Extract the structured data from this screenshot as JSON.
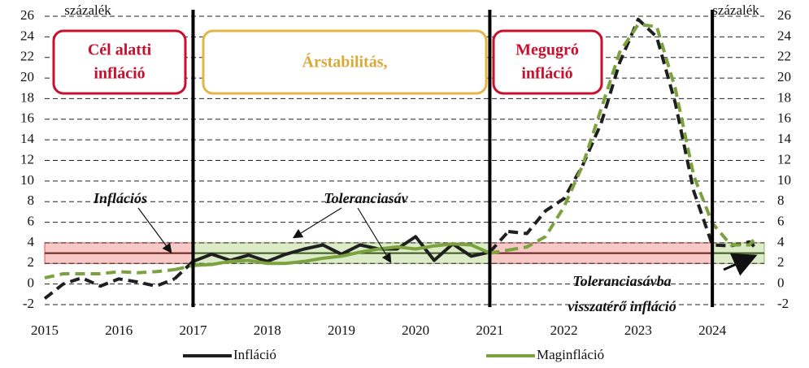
{
  "chart_data": {
    "type": "line",
    "y_label": "százalék",
    "y2_label": "százalék",
    "x": [
      2015.0,
      2015.25,
      2015.5,
      2015.75,
      2016.0,
      2016.25,
      2016.5,
      2016.75,
      2017.0,
      2017.25,
      2017.5,
      2017.75,
      2018.0,
      2018.25,
      2018.5,
      2018.75,
      2019.0,
      2019.25,
      2019.5,
      2019.75,
      2020.0,
      2020.25,
      2020.5,
      2020.75,
      2021.0,
      2021.25,
      2021.5,
      2021.75,
      2022.0,
      2022.25,
      2022.5,
      2022.75,
      2023.0,
      2023.25,
      2023.5,
      2023.75,
      2024.0,
      2024.25,
      2024.5,
      2024.6
    ],
    "series": [
      {
        "name": "Infláció",
        "color": "#1f1f1f",
        "values": [
          -1.4,
          0.0,
          0.6,
          -0.2,
          0.5,
          0.2,
          -0.2,
          0.5,
          2.2,
          2.9,
          2.3,
          2.8,
          2.2,
          2.9,
          3.4,
          3.8,
          2.9,
          3.8,
          3.4,
          3.4,
          4.6,
          2.3,
          3.9,
          2.7,
          3.1,
          5.1,
          4.9,
          7.1,
          8.3,
          11.5,
          15.6,
          21.5,
          25.7,
          24.0,
          17.6,
          9.0,
          3.8,
          3.7,
          4.1,
          3.4
        ]
      },
      {
        "name": "Maginfláció",
        "color": "#7ba23f",
        "values": [
          0.6,
          1.0,
          1.0,
          1.0,
          1.2,
          1.1,
          1.2,
          1.4,
          1.8,
          1.9,
          2.2,
          2.3,
          2.0,
          2.0,
          2.2,
          2.5,
          2.7,
          3.1,
          3.4,
          3.6,
          3.4,
          3.7,
          3.9,
          3.8,
          3.0,
          3.3,
          3.6,
          4.6,
          7.5,
          11.5,
          17.0,
          22.5,
          25.2,
          25.0,
          19.0,
          10.5,
          5.9,
          3.8,
          3.8,
          4.7
        ]
      }
    ],
    "xlim": [
      2015,
      2024.7
    ],
    "xticks": [
      2015,
      2016,
      2017,
      2018,
      2019,
      2020,
      2021,
      2022,
      2023,
      2024
    ],
    "ylim": [
      -2,
      26
    ],
    "yticks": [
      -2,
      0,
      2,
      4,
      6,
      8,
      10,
      12,
      14,
      16,
      18,
      20,
      22,
      24,
      26
    ],
    "y2lim": [
      -2,
      26
    ],
    "y2ticks": [
      -2,
      0,
      2,
      4,
      6,
      8,
      10,
      12,
      14,
      16,
      18,
      20,
      22,
      24,
      26
    ],
    "grid": true,
    "solid_range": [
      2017,
      2021
    ],
    "period_lines": [
      2017,
      2021,
      2024
    ],
    "tolerance_band": [
      2,
      4
    ],
    "target": 3,
    "band_segments": [
      {
        "from": 2015,
        "to": 2017,
        "color": "#f6c9c6"
      },
      {
        "from": 2017,
        "to": 2021,
        "color": "#dcebc8"
      },
      {
        "from": 2021,
        "to": 2024,
        "color": "#f6c9c6"
      },
      {
        "from": 2024,
        "to": 2024.7,
        "color": "#dcebc8"
      }
    ],
    "box_labels": [
      [
        "Cél alatti",
        "infláció"
      ],
      [
        "Árstabilitás,"
      ],
      [
        "Megugró",
        "infláció"
      ]
    ],
    "annotations": {
      "inflation_target": "Inflációs",
      "tolerance_band": "Toleranciasáv",
      "return": [
        "Toleranciasávba",
        "visszatérő infláció"
      ]
    }
  }
}
